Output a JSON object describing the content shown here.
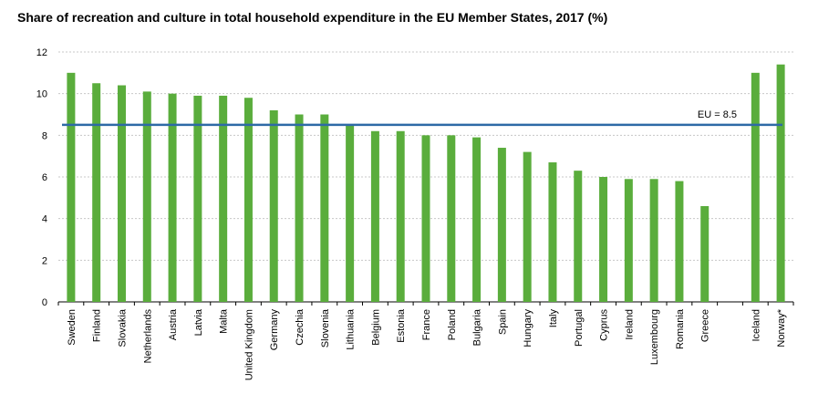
{
  "title": "Share of recreation and culture in total household expenditure in the EU Member States, 2017 (%)",
  "chart_data": {
    "type": "bar",
    "title": "Share of recreation and culture in total household expenditure in the EU Member States, 2017 (%)",
    "xlabel": "",
    "ylabel": "",
    "ylim": [
      0,
      12
    ],
    "yticks": [
      "0",
      "2",
      "4",
      "6",
      "8",
      "10",
      "12"
    ],
    "grid": true,
    "bar_color": "#5aad3c",
    "categories": [
      "Sweden",
      "Finland",
      "Slovakia",
      "Netherlands",
      "Austria",
      "Latvia",
      "Malta",
      "United Kingdom",
      "Germany",
      "Czechia",
      "Slovenia",
      "Lithuania",
      "Belgium",
      "Estonia",
      "France",
      "Poland",
      "Bulgaria",
      "Spain",
      "Hungary",
      "Italy",
      "Portugal",
      "Cyprus",
      "Ireland",
      "Luxembourg",
      "Romania",
      "Greece",
      "",
      "Iceland",
      "Norway*"
    ],
    "values": [
      11.0,
      10.5,
      10.4,
      10.1,
      10.0,
      9.9,
      9.9,
      9.8,
      9.2,
      9.0,
      9.0,
      8.5,
      8.2,
      8.2,
      8.0,
      8.0,
      7.9,
      7.4,
      7.2,
      6.7,
      6.3,
      6.0,
      5.9,
      5.9,
      5.8,
      4.6,
      null,
      11.0,
      11.4
    ],
    "reference_line": {
      "label": "EU = 8.5",
      "value": 8.5,
      "color": "#2e6aa6"
    }
  }
}
